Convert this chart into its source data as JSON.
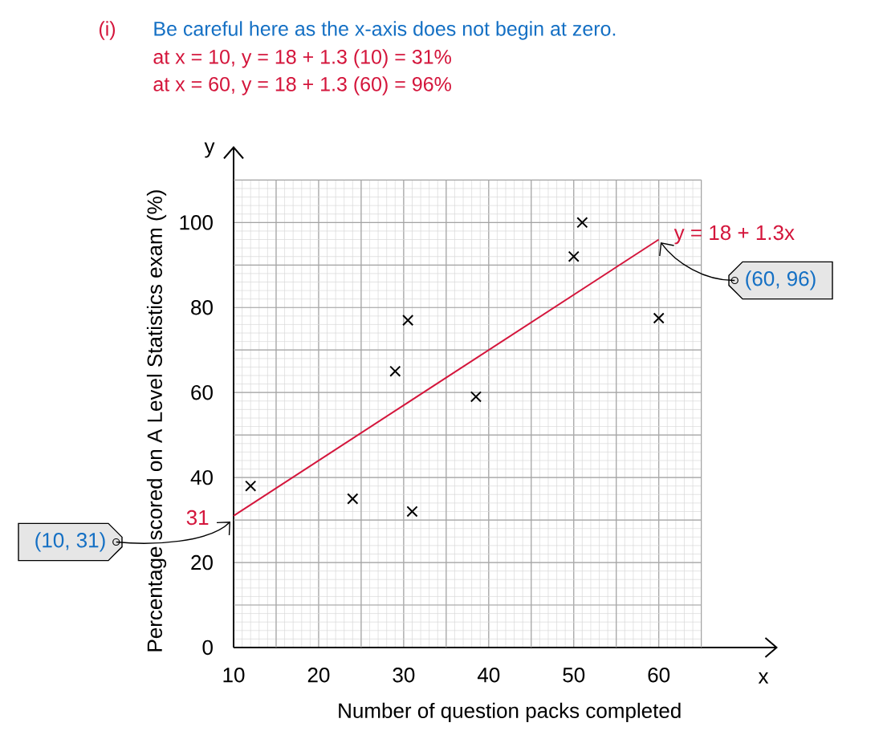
{
  "chart_data": {
    "type": "scatter",
    "xlabel": "Number of question packs completed",
    "ylabel": "Percentage scored on A Level Statistics exam (%)",
    "annotations": [
      "(i)",
      "Be careful here as the x-axis does not begin at zero.",
      "at x = 10, y = 18 + 1.3 (10) = 31%",
      "at x = 60, y = 18 + 1.3 (60) = 96%",
      "31",
      "(10, 31)",
      "(60, 96)",
      "y",
      "x"
    ],
    "series": [
      {
        "color": "#000000",
        "x": [
          12,
          24,
          29,
          30.5,
          31,
          38.5,
          50,
          51,
          60
        ],
        "values": [
          38,
          35,
          65,
          77,
          32,
          59,
          92,
          100,
          77.5
        ]
      },
      {
        "type": "line",
        "name": "y = 18 + 1.3x",
        "color": "#d4163c",
        "marker": "none",
        "x": [
          10,
          60
        ],
        "values": [
          31,
          96
        ]
      }
    ],
    "xlim": [
      10,
      74
    ],
    "ylim": [
      0,
      118
    ],
    "xticks": [
      10,
      20,
      30,
      40,
      50,
      60
    ],
    "yticks": [
      0,
      20,
      40,
      60,
      80,
      100
    ],
    "grid": true,
    "marker": "cross"
  }
}
